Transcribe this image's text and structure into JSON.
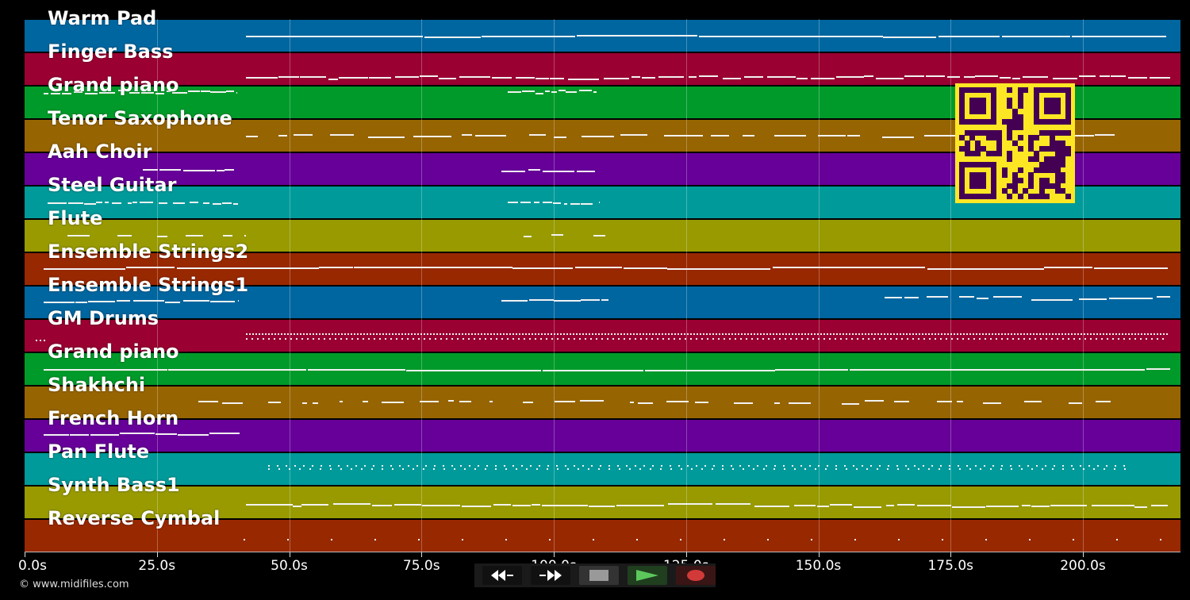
{
  "tracks": [
    {
      "name": "Warm Pad",
      "color": "#0066a0"
    },
    {
      "name": "Finger Bass",
      "color": "#9a0032"
    },
    {
      "name": "Grand piano",
      "color": "#009a2a"
    },
    {
      "name": "Tenor Saxophone",
      "color": "#966400"
    },
    {
      "name": "Aah Choir",
      "color": "#660098"
    },
    {
      "name": "Steel Guitar",
      "color": "#009a9a"
    },
    {
      "name": "Flute",
      "color": "#989a00"
    },
    {
      "name": "Ensemble Strings2",
      "color": "#982800"
    },
    {
      "name": "Ensemble Strings1",
      "color": "#0066a0"
    },
    {
      "name": "GM Drums",
      "color": "#9a0032"
    },
    {
      "name": "Grand piano",
      "color": "#009a2a"
    },
    {
      "name": "Shakhchi",
      "color": "#966400"
    },
    {
      "name": "French Horn",
      "color": "#660098"
    },
    {
      "name": "Pan Flute",
      "color": "#009a9a"
    },
    {
      "name": "Synth Bass1",
      "color": "#989a00"
    },
    {
      "name": "Reverse Cymbal",
      "color": "#982800"
    }
  ],
  "timeline": {
    "ticks": [
      "0.0s",
      "25.0s",
      "50.0s",
      "75.0s",
      "100.0s",
      "125.0s",
      "150.0s",
      "175.0s",
      "200.0s"
    ],
    "tick_seconds": [
      0,
      25,
      50,
      75,
      100,
      125,
      150,
      175,
      200
    ],
    "end_seconds": 218.5
  },
  "transport": {
    "buttons": [
      {
        "name": "rewind-button",
        "icon": "rewind-icon"
      },
      {
        "name": "fast-forward-button",
        "icon": "fast-forward-icon"
      },
      {
        "name": "stop-button",
        "icon": "stop-icon"
      },
      {
        "name": "play-button",
        "icon": "play-icon"
      },
      {
        "name": "record-button",
        "icon": "record-icon"
      }
    ]
  },
  "qr_code": {
    "fg": "#440154",
    "bg": "#fde724"
  },
  "credit": "© www.midifiles.com"
}
